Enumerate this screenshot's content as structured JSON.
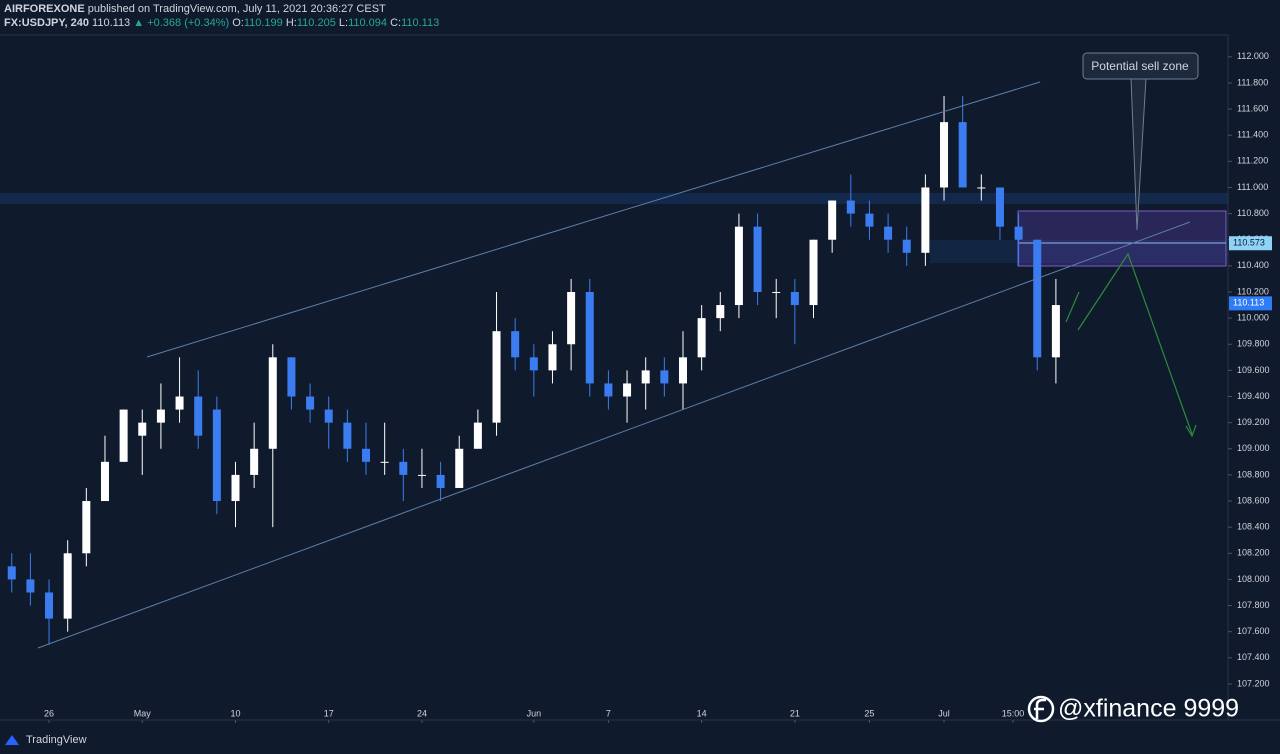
{
  "header": {
    "author": "AIRFOREXONE",
    "published": "published on TradingView.com, July 11, 2021 20:36:27 CEST",
    "symbol": "FX:USDJPY, 240",
    "last": "110.113",
    "change": "+0.368 (+0.34%)",
    "ohlc_labels": [
      "O:",
      "H:",
      "L:",
      "C:"
    ],
    "ohlc_values": [
      "110.199",
      "110.205",
      "110.094",
      "110.113"
    ]
  },
  "chart_data": {
    "type": "candlestick",
    "up_color": "#ffffff",
    "down_color": "#3b7df0",
    "grid": false,
    "x": [
      -2,
      -1,
      0,
      1,
      2,
      3,
      4,
      5,
      6,
      7,
      8,
      9,
      10,
      11,
      12,
      13,
      14,
      15,
      16,
      17,
      18,
      19,
      20,
      21,
      22,
      23,
      24,
      25,
      26,
      27,
      28,
      29,
      30,
      31,
      32,
      33,
      34,
      35,
      36,
      37,
      38,
      39,
      40,
      41,
      42,
      43,
      44,
      45,
      46,
      47,
      48,
      49,
      50,
      51,
      52,
      53,
      54
    ],
    "open": [
      108.1,
      108.0,
      107.9,
      107.7,
      108.2,
      108.6,
      108.9,
      109.1,
      109.2,
      109.3,
      109.4,
      109.3,
      108.6,
      108.8,
      109.0,
      109.7,
      109.4,
      109.3,
      109.2,
      109.0,
      108.9,
      108.9,
      108.8,
      108.8,
      108.7,
      109.0,
      109.2,
      109.9,
      109.7,
      109.6,
      109.8,
      110.2,
      109.5,
      109.4,
      109.5,
      109.6,
      109.5,
      109.7,
      110.0,
      110.1,
      110.7,
      110.2,
      110.2,
      110.1,
      110.6,
      110.9,
      110.8,
      110.7,
      110.6,
      110.5,
      111.0,
      111.5,
      111.0,
      111.0,
      110.7,
      110.6,
      109.7
    ],
    "high": [
      108.2,
      108.2,
      108.0,
      108.3,
      108.7,
      109.1,
      109.3,
      109.3,
      109.5,
      109.7,
      109.6,
      109.4,
      108.9,
      109.2,
      109.8,
      109.7,
      109.5,
      109.4,
      109.3,
      109.2,
      109.2,
      109.0,
      109.0,
      108.9,
      109.1,
      109.3,
      110.2,
      110.0,
      109.8,
      109.9,
      110.3,
      110.3,
      109.6,
      109.6,
      109.7,
      109.7,
      109.9,
      110.1,
      110.2,
      110.8,
      110.8,
      110.3,
      110.3,
      110.6,
      110.9,
      111.1,
      110.9,
      110.8,
      110.7,
      111.1,
      111.7,
      111.7,
      111.1,
      111.0,
      110.8,
      110.6,
      110.3
    ],
    "low": [
      107.9,
      107.8,
      107.5,
      107.6,
      108.1,
      108.6,
      108.9,
      108.8,
      109.0,
      109.2,
      109.0,
      108.5,
      108.4,
      108.7,
      108.4,
      109.3,
      109.2,
      109.0,
      108.9,
      108.8,
      108.8,
      108.6,
      108.7,
      108.6,
      108.7,
      109.0,
      109.1,
      109.6,
      109.4,
      109.5,
      109.6,
      109.4,
      109.3,
      109.2,
      109.3,
      109.4,
      109.3,
      109.6,
      109.9,
      110.0,
      110.1,
      110.0,
      109.8,
      110.0,
      110.5,
      110.7,
      110.6,
      110.5,
      110.4,
      110.4,
      110.9,
      111.0,
      110.9,
      110.6,
      110.4,
      109.6,
      109.5
    ],
    "close": [
      108.0,
      107.9,
      107.7,
      108.2,
      108.6,
      108.9,
      109.3,
      109.2,
      109.3,
      109.4,
      109.1,
      108.6,
      108.8,
      109.0,
      109.7,
      109.4,
      109.3,
      109.2,
      109.0,
      108.9,
      108.9,
      108.8,
      108.8,
      108.7,
      109.0,
      109.2,
      109.9,
      109.7,
      109.6,
      109.8,
      110.2,
      109.5,
      109.4,
      109.5,
      109.6,
      109.5,
      109.7,
      110.0,
      110.1,
      110.7,
      110.2,
      110.2,
      110.1,
      110.6,
      110.9,
      110.8,
      110.7,
      110.6,
      110.5,
      111.0,
      111.5,
      111.0,
      111.0,
      110.7,
      110.6,
      109.7,
      110.1
    ],
    "xlim": [
      -2.63,
      63.23
    ],
    "xticks": [
      {
        "value": 0,
        "label": "26"
      },
      {
        "value": 5,
        "label": "May"
      },
      {
        "value": 10,
        "label": "10"
      },
      {
        "value": 15,
        "label": "17"
      },
      {
        "value": 20,
        "label": "24"
      },
      {
        "value": 26,
        "label": "Jun"
      },
      {
        "value": 30,
        "label": "7"
      },
      {
        "value": 35,
        "label": "14"
      },
      {
        "value": 40,
        "label": "21"
      },
      {
        "value": 44,
        "label": "25"
      },
      {
        "value": 48,
        "label": "Jul"
      },
      {
        "value": 51.7,
        "label": "15:00"
      }
    ],
    "ylim": [
      106.924,
      112.167
    ],
    "yticks": [
      {
        "value": 107.2,
        "label": "107.200"
      },
      {
        "value": 107.4,
        "label": "107.400"
      },
      {
        "value": 107.6,
        "label": "107.600"
      },
      {
        "value": 107.8,
        "label": "107.800"
      },
      {
        "value": 108,
        "label": "108.000"
      },
      {
        "value": 108.2,
        "label": "108.200"
      },
      {
        "value": 108.4,
        "label": "108.400"
      },
      {
        "value": 108.6,
        "label": "108.600"
      },
      {
        "value": 108.8,
        "label": "108.800"
      },
      {
        "value": 109,
        "label": "109.000"
      },
      {
        "value": 109.2,
        "label": "109.200"
      },
      {
        "value": 109.4,
        "label": "109.400"
      },
      {
        "value": 109.6,
        "label": "109.600"
      },
      {
        "value": 109.8,
        "label": "109.800"
      },
      {
        "value": 110,
        "label": "110.000"
      },
      {
        "value": 110.2,
        "label": "110.200"
      },
      {
        "value": 110.4,
        "label": "110.400"
      },
      {
        "value": 110.6,
        "label": "110.600"
      },
      {
        "value": 110.8,
        "label": "110.800"
      },
      {
        "value": 111,
        "label": "111.000"
      },
      {
        "value": 111.2,
        "label": "111.200"
      },
      {
        "value": 111.4,
        "label": "111.400"
      },
      {
        "value": 111.6,
        "label": "111.600"
      },
      {
        "value": 111.8,
        "label": "111.800"
      },
      {
        "value": 112,
        "label": "112.000"
      }
    ],
    "price_labels": [
      {
        "value": 110.573,
        "color": "#8fd3f7"
      },
      {
        "value": 110.113,
        "color": "#2f7df6"
      }
    ],
    "annotation": "Potential sell zone",
    "watermark": "@xfinance 9999",
    "footer": "TradingView"
  }
}
